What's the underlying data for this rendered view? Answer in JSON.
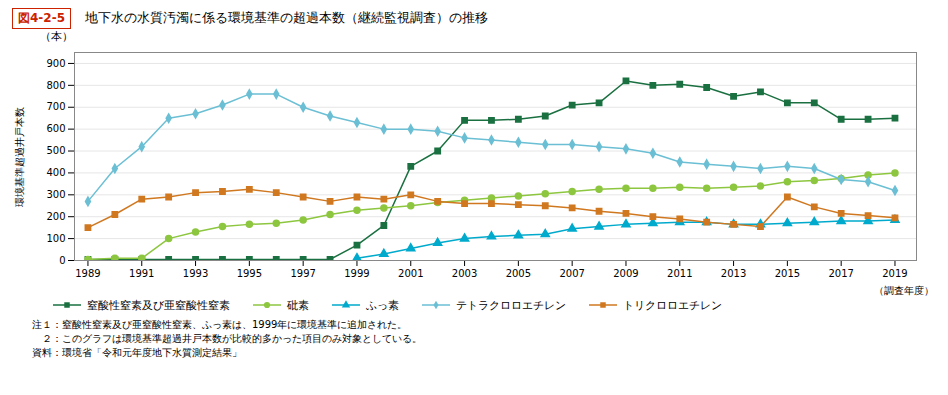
{
  "chart_data": {
    "type": "line",
    "title": "地下水の水質汚濁に係る環境基準の超過本数（継続監視調査）の推移",
    "annotations": [
      "図4-2-5",
      "（本）",
      "注１：窒酸性窒素及び亜窒酸性窒素、ふっ素は、1999年に環境基準に追加された。",
      "　２：このグラフは環境基準超過井戸本数が比較的多かった項目のみ対象としている。",
      "資料：環境省「令和元年度地下水質測定結果」"
    ],
    "ylabel": "環境基準超過井戸本数",
    "xlabel": "（調査年度）",
    "x": [
      1989,
      1990,
      1991,
      1992,
      1993,
      1994,
      1995,
      1996,
      1997,
      1998,
      1999,
      2000,
      2001,
      2002,
      2003,
      2004,
      2005,
      2006,
      2007,
      2008,
      2009,
      2010,
      2011,
      2012,
      2013,
      2014,
      2015,
      2016,
      2017,
      2018,
      2019
    ],
    "xlim": [
      1988.5,
      2019.8
    ],
    "xticks": [
      1989,
      1991,
      1993,
      1995,
      1997,
      1999,
      2001,
      2003,
      2005,
      2007,
      2009,
      2011,
      2013,
      2015,
      2017,
      2019
    ],
    "ylim": [
      0,
      950
    ],
    "yticks": [
      0,
      100,
      200,
      300,
      400,
      500,
      600,
      700,
      800,
      900
    ],
    "grid": "y",
    "legend": "bottom",
    "series": [
      {
        "name": "窒酸性窒素及び亜窒酸性窒素",
        "color": "#1a7040",
        "marker": "square",
        "values": [
          5,
          5,
          5,
          5,
          5,
          5,
          5,
          5,
          5,
          5,
          70,
          160,
          430,
          500,
          640,
          640,
          645,
          660,
          710,
          720,
          820,
          800,
          805,
          790,
          750,
          770,
          720,
          720,
          645,
          645,
          650
        ]
      },
      {
        "name": "砒素",
        "color": "#8dc63f",
        "marker": "circle",
        "values": [
          5,
          10,
          10,
          100,
          130,
          155,
          165,
          170,
          185,
          210,
          230,
          240,
          250,
          265,
          275,
          285,
          295,
          305,
          315,
          325,
          330,
          330,
          335,
          330,
          335,
          340,
          360,
          365,
          375,
          390,
          400
        ]
      },
      {
        "name": "ふっ素",
        "color": "#00aacc",
        "marker": "triangle",
        "values": [
          null,
          null,
          null,
          null,
          null,
          null,
          null,
          null,
          null,
          null,
          10,
          30,
          55,
          80,
          100,
          110,
          115,
          120,
          145,
          155,
          165,
          170,
          175,
          175,
          165,
          165,
          170,
          175,
          180,
          180,
          185
        ]
      },
      {
        "name": "テトラクロロエチレン",
        "color": "#6bbfd4",
        "marker": "diamond",
        "values": [
          270,
          420,
          520,
          650,
          670,
          710,
          760,
          760,
          700,
          660,
          630,
          600,
          600,
          590,
          560,
          550,
          540,
          530,
          530,
          520,
          510,
          490,
          450,
          440,
          430,
          420,
          430,
          420,
          370,
          360,
          320
        ]
      },
      {
        "name": "トリクロロエチレン",
        "color": "#d07820",
        "marker": "square",
        "values": [
          150,
          210,
          280,
          290,
          310,
          315,
          325,
          310,
          290,
          270,
          290,
          280,
          300,
          270,
          260,
          260,
          255,
          250,
          240,
          225,
          215,
          200,
          190,
          175,
          165,
          155,
          290,
          245,
          215,
          205,
          195
        ]
      }
    ]
  }
}
